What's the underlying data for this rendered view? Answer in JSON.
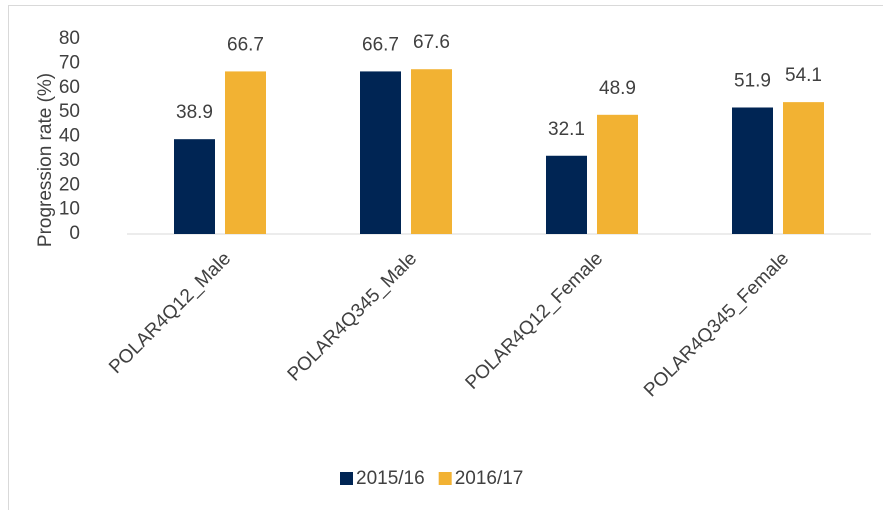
{
  "chart_data": {
    "type": "bar",
    "y_label": "Progression rate (%)",
    "categories": [
      "POLAR4Q12_Male",
      "POLAR4Q345_Male",
      "POLAR4Q12_Female",
      "POLAR4Q345_Female"
    ],
    "series": [
      {
        "name": "2015/16",
        "color": "#002554",
        "values": [
          38.9,
          66.7,
          32.1,
          51.9
        ]
      },
      {
        "name": "2016/17",
        "color": "#f2b233",
        "values": [
          66.7,
          67.6,
          48.9,
          54.1
        ]
      }
    ],
    "ylim": [
      0,
      80
    ],
    "yticks": [
      0,
      10,
      20,
      30,
      40,
      50,
      60,
      70,
      80
    ],
    "grid": false,
    "legend": "bottom"
  }
}
